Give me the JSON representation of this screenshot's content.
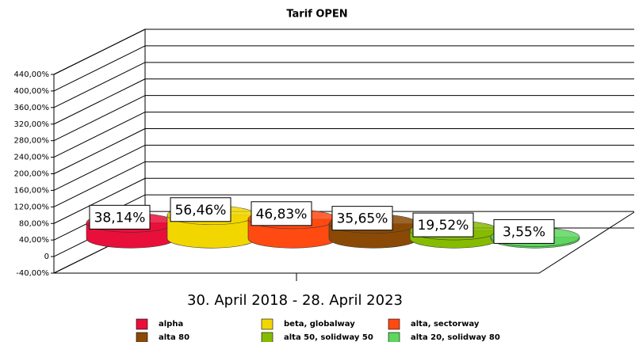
{
  "chart_data": {
    "type": "bar3d",
    "title": "Tarif OPEN",
    "categories": [
      "30. April 2018 - 28. April 2023"
    ],
    "series": [
      {
        "name": "alpha",
        "color": "#e8103a",
        "values": [
          38.14
        ],
        "value_labels": [
          "38,14%"
        ]
      },
      {
        "name": "beta, globalway",
        "color": "#f2d600",
        "values": [
          56.46
        ],
        "value_labels": [
          "56,46%"
        ]
      },
      {
        "name": "alta, sectorway",
        "color": "#ff4a12",
        "values": [
          46.83
        ],
        "value_labels": [
          "46,83%"
        ]
      },
      {
        "name": "alta 80",
        "color": "#8a4a06",
        "values": [
          35.65
        ],
        "value_labels": [
          "35,65%"
        ]
      },
      {
        "name": "alta 50, solidway 50",
        "color": "#86bc00",
        "values": [
          19.52
        ],
        "value_labels": [
          "19,52%"
        ]
      },
      {
        "name": "alta 20, solidway 80",
        "color": "#5fd65f",
        "values": [
          3.55
        ],
        "value_labels": [
          "3,55%"
        ]
      }
    ],
    "ylim": [
      -40,
      440
    ],
    "yticks": [
      {
        "value": -40,
        "label": "-40,00%"
      },
      0,
      {
        "value": 40,
        "label": "40,00%"
      },
      {
        "value": 80,
        "label": "80,00%"
      },
      {
        "value": 120,
        "label": "120,00%"
      },
      {
        "value": 160,
        "label": "160,00%"
      },
      {
        "value": 200,
        "label": "200,00%"
      },
      {
        "value": 240,
        "label": "240,00%"
      },
      {
        "value": 280,
        "label": "280,00%"
      },
      {
        "value": 320,
        "label": "320,00%"
      },
      {
        "value": 360,
        "label": "360,00%"
      },
      {
        "value": 400,
        "label": "400,00%"
      },
      {
        "value": 440,
        "label": "440,00%"
      }
    ],
    "grid": true
  }
}
